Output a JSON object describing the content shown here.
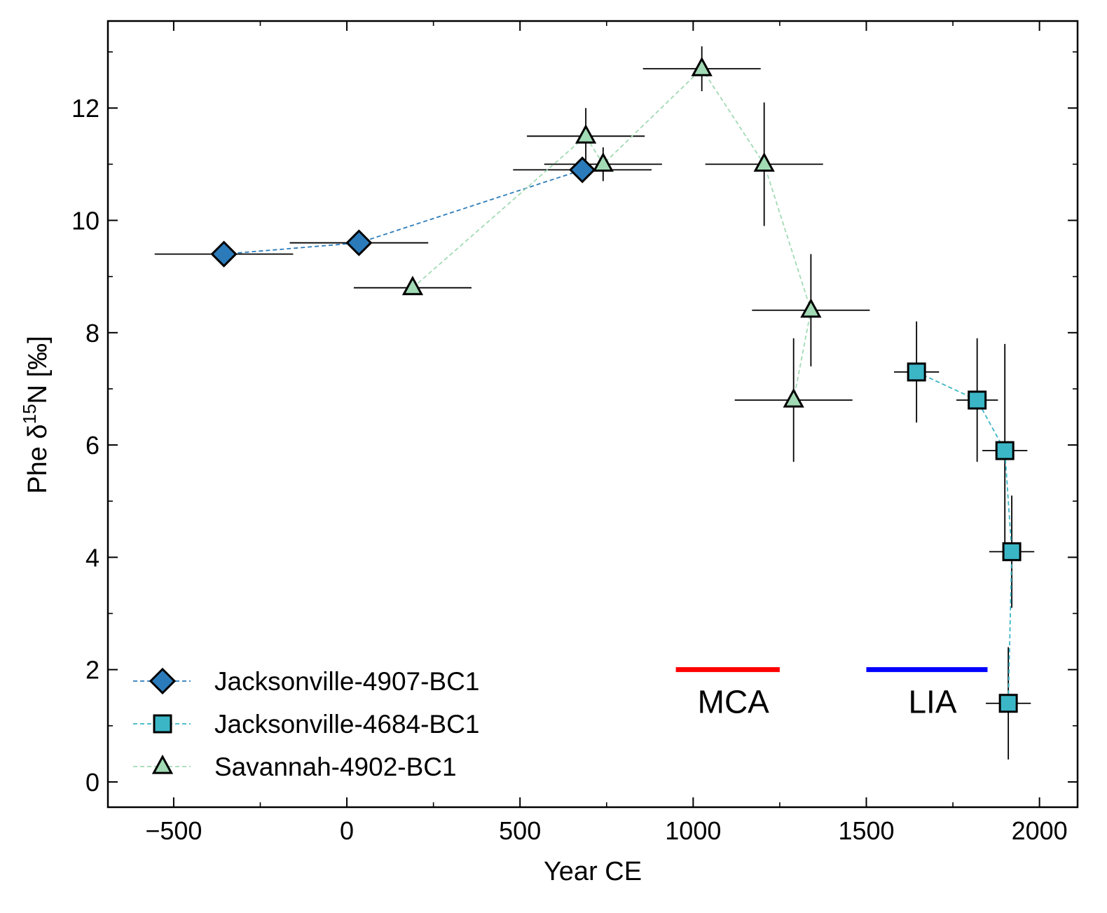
{
  "chart_data": {
    "type": "scatter",
    "xlabel": "Year CE",
    "ylabel_main": "Phe δ",
    "ylabel_sup": "15",
    "ylabel_tail": "N [‰]",
    "xlim": [
      -690,
      2110
    ],
    "ylim": [
      -0.45,
      13.55
    ],
    "xticks": [
      -500,
      0,
      500,
      1000,
      1500,
      2000
    ],
    "xtick_labels": [
      "−500",
      "0",
      "500",
      "1000",
      "1500",
      "2000"
    ],
    "yticks": [
      0,
      2,
      4,
      6,
      8,
      10,
      12
    ],
    "ytick_labels": [
      "0",
      "2",
      "4",
      "6",
      "8",
      "10",
      "12"
    ],
    "grid": false,
    "legend_position": "bottom-left",
    "series": [
      {
        "name": "Jacksonville-4907-BC1",
        "marker": "diamond",
        "color": "#2b7bba",
        "points": [
          {
            "x": -355,
            "y": 9.4,
            "xerr": 200,
            "yerr": 0
          },
          {
            "x": 35,
            "y": 9.6,
            "xerr": 200,
            "yerr": 0
          },
          {
            "x": 680,
            "y": 10.9,
            "xerr": 200,
            "yerr": 0
          }
        ]
      },
      {
        "name": "Jacksonville-4684-BC1",
        "marker": "square",
        "color": "#3bb6c6",
        "points": [
          {
            "x": 1645,
            "y": 7.3,
            "xerr": 65,
            "yerr": 0.9
          },
          {
            "x": 1820,
            "y": 6.8,
            "xerr": 60,
            "yerr": 1.1
          },
          {
            "x": 1900,
            "y": 5.9,
            "xerr": 65,
            "yerr": 1.9
          },
          {
            "x": 1920,
            "y": 4.1,
            "xerr": 65,
            "yerr": 1.0
          },
          {
            "x": 1910,
            "y": 1.4,
            "xerr": 65,
            "yerr": 1.0
          }
        ]
      },
      {
        "name": "Savannah-4902-BC1",
        "marker": "triangle",
        "color": "#a1dab4",
        "points": [
          {
            "x": 190,
            "y": 8.8,
            "xerr": 170,
            "yerr": 0
          },
          {
            "x": 690,
            "y": 11.5,
            "xerr": 170,
            "yerr": 0.5
          },
          {
            "x": 740,
            "y": 11.0,
            "xerr": 170,
            "yerr": 0.3
          },
          {
            "x": 1025,
            "y": 12.7,
            "xerr": 170,
            "yerr": 0.4
          },
          {
            "x": 1205,
            "y": 11.0,
            "xerr": 170,
            "yerr": 1.1
          },
          {
            "x": 1340,
            "y": 8.4,
            "xerr": 170,
            "yerr": 1.0
          },
          {
            "x": 1290,
            "y": 6.8,
            "xerr": 170,
            "yerr": 1.1
          }
        ]
      }
    ],
    "periods": [
      {
        "label": "MCA",
        "x_start": 950,
        "x_end": 1250,
        "y": 2.0,
        "color": "#ff0000"
      },
      {
        "label": "LIA",
        "x_start": 1500,
        "x_end": 1850,
        "y": 2.0,
        "color": "#0000ff"
      }
    ]
  }
}
